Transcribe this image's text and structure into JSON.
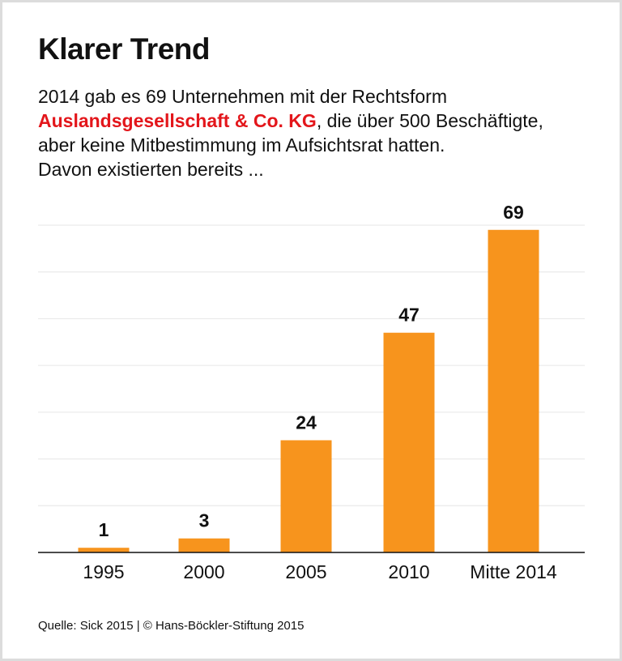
{
  "title": "Klarer Trend",
  "subtitle": {
    "line1": "2014 gab es 69 Unternehmen mit der Rechtsform",
    "highlight": "Auslandsgesellschaft & Co. KG",
    "line2_rest": ", die über 500 Beschäftigte,",
    "line3": "aber keine Mitbestimmung im Aufsichtsrat hatten.",
    "line4": "Davon existierten bereits ..."
  },
  "source": "Quelle: Sick 2015 | © Hans-Böckler-Stiftung 2015",
  "colors": {
    "bar": "#f7941d",
    "highlight": "#e3161b",
    "grid": "#e6e6e6"
  },
  "chart_data": {
    "type": "bar",
    "categories": [
      "1995",
      "2000",
      "2005",
      "2010",
      "Mitte 2014"
    ],
    "values": [
      1,
      3,
      24,
      47,
      69
    ],
    "ylim": [
      0,
      70
    ],
    "grid": true,
    "grid_step": 10,
    "data_labels": [
      "1",
      "3",
      "24",
      "47",
      "69"
    ]
  }
}
